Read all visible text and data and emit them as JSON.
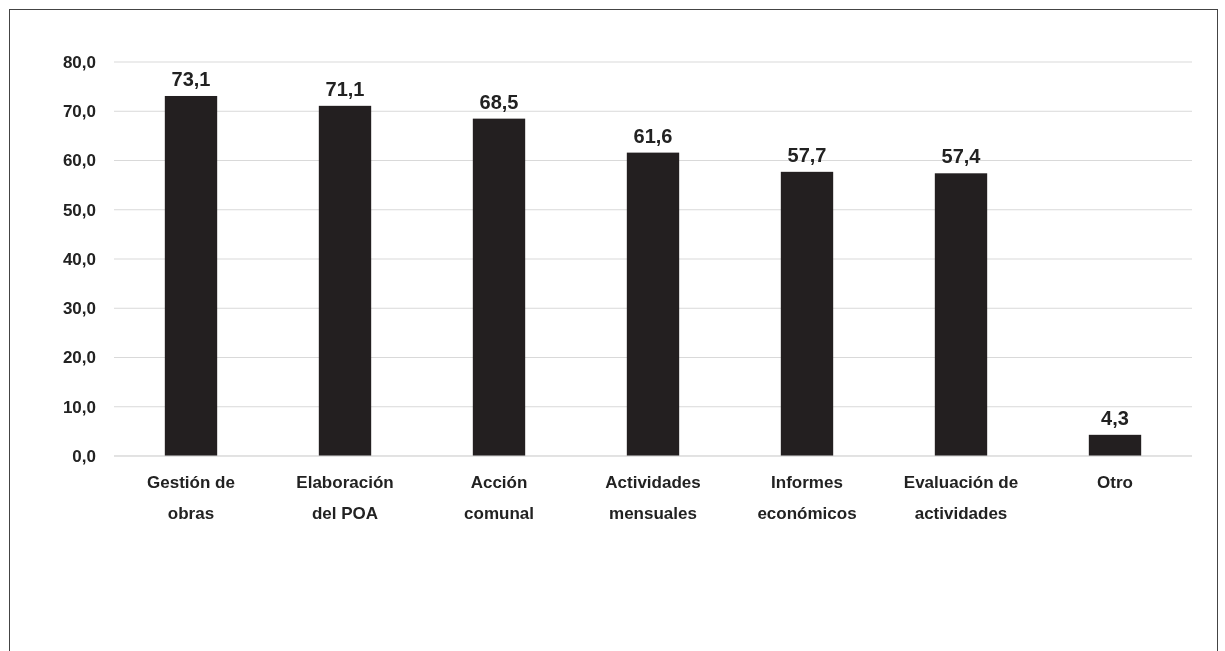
{
  "chart_data": {
    "type": "bar",
    "categories": [
      "Gestión de obras",
      "Elaboración del POA",
      "Acción comunal",
      "Actividades mensuales",
      "Informes económicos",
      "Evaluación de actividades",
      "Otro"
    ],
    "values": [
      73.1,
      71.1,
      68.5,
      61.6,
      57.7,
      57.4,
      4.3
    ],
    "value_labels": [
      "73,1",
      "71,1",
      "68,5",
      "61,6",
      "57,7",
      "57,4",
      "4,3"
    ],
    "color": "#231f20",
    "ylim": [
      0,
      80
    ],
    "yticks": [
      {
        "value": 0,
        "label": "0,0"
      },
      {
        "value": 10,
        "label": "10,0"
      },
      {
        "value": 20,
        "label": "20,0"
      },
      {
        "value": 30,
        "label": "30,0"
      },
      {
        "value": 40,
        "label": "40,0"
      },
      {
        "value": 50,
        "label": "50,0"
      },
      {
        "value": 60,
        "label": "60,0"
      },
      {
        "value": 70,
        "label": "70,0"
      },
      {
        "value": 80,
        "label": "80,0"
      }
    ],
    "grid": "y"
  }
}
